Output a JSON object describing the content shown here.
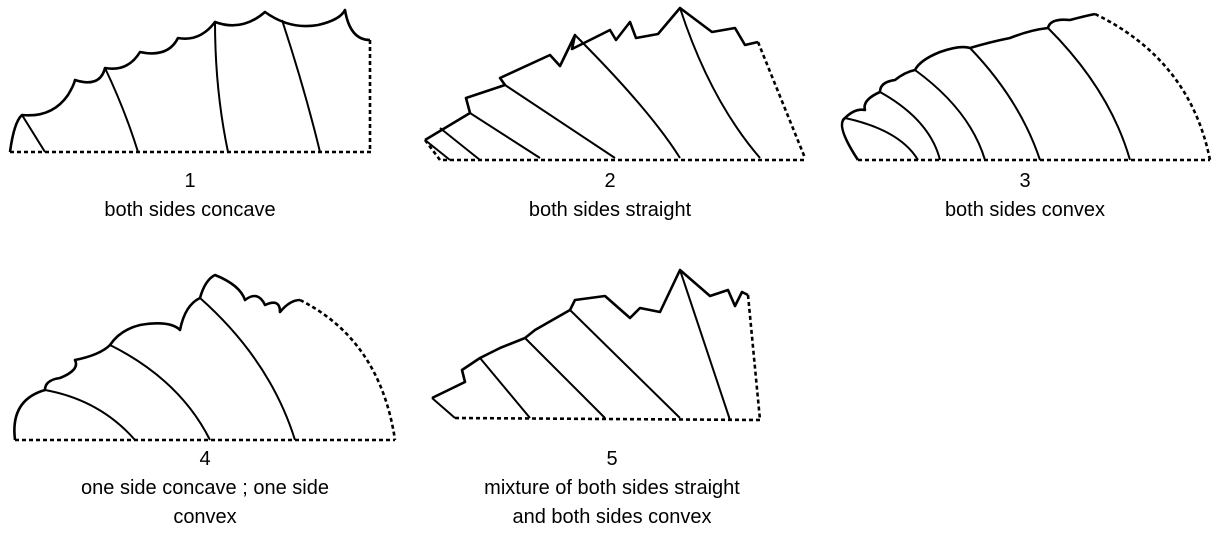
{
  "items": [
    {
      "number": "1",
      "caption": [
        "both sides concave"
      ]
    },
    {
      "number": "2",
      "caption": [
        "both sides straight"
      ]
    },
    {
      "number": "3",
      "caption": [
        "both sides convex"
      ]
    },
    {
      "number": "4",
      "caption": [
        "one side concave ; one side",
        "convex"
      ]
    },
    {
      "number": "5",
      "caption": [
        "mixture of both sides straight",
        "and both sides convex"
      ]
    }
  ]
}
